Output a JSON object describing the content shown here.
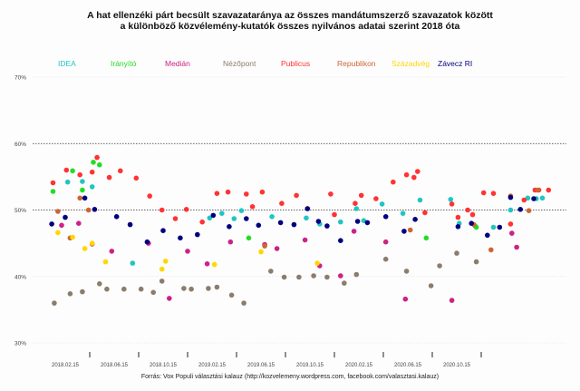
{
  "title_line1": "A hat ellenzéki párt becsült szavazataránya az összes mandátumszerző szavazatok között",
  "title_line2": "a különböző közvélemény-kutatók összes nyilvános adatai szerint 2018 óta",
  "footer": "Forrás: Vox Populi választási kalauz (http://kozvelemeny.wordpress.com, facebook.com/valasztasi.kalauz)",
  "chart_data": {
    "type": "scatter",
    "title": "A hat ellenzéki párt becsült szavazataránya az összes mandátumszerző szavazatok között a különböző közvélemény-kutatók összes nyilvános adatai szerint 2018 óta",
    "xlabel": "",
    "ylabel": "",
    "x_unit": "months since 2018.02.15",
    "xlim": [
      -1.5,
      40.5
    ],
    "ylim": [
      30,
      70
    ],
    "yticks": [
      30,
      40,
      50,
      60,
      70
    ],
    "ytick_labels": [
      "30%",
      "40%",
      "50%",
      "60%",
      "70%"
    ],
    "xticks": [
      0,
      4,
      8,
      12,
      16,
      20,
      24,
      28,
      32
    ],
    "xtick_labels": [
      "2018.02.15",
      "2018.06.15",
      "2018.10.15",
      "2019.02.15",
      "2019.06.15",
      "2019.10.15",
      "2020.02.15",
      "2020.06.15",
      "2020.10.15"
    ],
    "grid": "dotted horizontal at 50% and 60%",
    "legend_position": "top",
    "series": [
      {
        "name": "IDEA",
        "color": "#22c4c4",
        "points": [
          [
            0.2,
            54.2
          ],
          [
            1.4,
            54.3
          ],
          [
            2.2,
            53.5
          ],
          [
            5.5,
            42.0
          ],
          [
            11.8,
            48.8
          ],
          [
            12.8,
            49.5
          ],
          [
            13.8,
            48.7
          ],
          [
            14.4,
            49.9
          ],
          [
            16.9,
            49.0
          ],
          [
            19.7,
            48.8
          ],
          [
            20.8,
            47.9
          ],
          [
            22.5,
            48.2
          ],
          [
            23.8,
            50.2
          ],
          [
            24.4,
            48.4
          ],
          [
            25.9,
            50.9
          ],
          [
            27.6,
            49.5
          ],
          [
            29.0,
            51.5
          ],
          [
            31.5,
            51.6
          ],
          [
            32.2,
            48.0
          ],
          [
            33.5,
            47.6
          ],
          [
            35.0,
            47.4
          ],
          [
            36.4,
            50.0
          ],
          [
            37.8,
            51.8
          ],
          [
            38.5,
            51.7
          ],
          [
            39.0,
            51.8
          ]
        ]
      },
      {
        "name": "Irányító",
        "color": "#22dd22",
        "points": [
          [
            -1.0,
            52.8
          ],
          [
            0.6,
            55.9
          ],
          [
            1.4,
            53.0
          ],
          [
            2.3,
            57.2
          ],
          [
            2.8,
            56.8
          ],
          [
            15.0,
            45.8
          ],
          [
            29.5,
            45.8
          ],
          [
            33.6,
            47.4
          ]
        ]
      },
      {
        "name": "Medián",
        "color": "#cc2288",
        "points": [
          [
            -0.3,
            47.7
          ],
          [
            1.1,
            48.0
          ],
          [
            2.2,
            44.9
          ],
          [
            3.8,
            43.8
          ],
          [
            6.8,
            45.0
          ],
          [
            8.5,
            36.7
          ],
          [
            10.0,
            43.8
          ],
          [
            11.6,
            41.9
          ],
          [
            13.5,
            45.2
          ],
          [
            16.3,
            44.8
          ],
          [
            17.3,
            44.2
          ],
          [
            19.6,
            45.5
          ],
          [
            20.8,
            41.6
          ],
          [
            22.5,
            40.1
          ],
          [
            23.6,
            46.8
          ],
          [
            26.2,
            45.2
          ],
          [
            27.8,
            36.6
          ],
          [
            31.6,
            36.4
          ],
          [
            36.5,
            46.5
          ],
          [
            36.9,
            44.4
          ]
        ]
      },
      {
        "name": "Nézőpont",
        "color": "#8b7d6b",
        "points": [
          [
            -0.9,
            36.0
          ],
          [
            0.4,
            37.4
          ],
          [
            1.4,
            37.7
          ],
          [
            2.8,
            38.9
          ],
          [
            3.4,
            38.1
          ],
          [
            4.8,
            38.1
          ],
          [
            6.2,
            38.1
          ],
          [
            7.2,
            37.6
          ],
          [
            7.9,
            39.3
          ],
          [
            9.7,
            38.2
          ],
          [
            10.3,
            38.1
          ],
          [
            11.7,
            38.2
          ],
          [
            12.4,
            38.4
          ],
          [
            13.6,
            37.2
          ],
          [
            14.6,
            36.0
          ],
          [
            16.8,
            40.8
          ],
          [
            17.9,
            39.9
          ],
          [
            19.1,
            39.9
          ],
          [
            20.3,
            40.1
          ],
          [
            21.4,
            39.9
          ],
          [
            22.8,
            39.0
          ],
          [
            23.8,
            40.3
          ],
          [
            26.2,
            42.6
          ],
          [
            27.9,
            40.8
          ],
          [
            29.9,
            38.6
          ],
          [
            30.6,
            41.6
          ],
          [
            32.0,
            43.5
          ],
          [
            33.6,
            42.2
          ]
        ]
      },
      {
        "name": "Publicus",
        "color": "#ff3333",
        "points": [
          [
            -1.0,
            54.1
          ],
          [
            0.1,
            56.0
          ],
          [
            1.2,
            55.3
          ],
          [
            2.2,
            55.7
          ],
          [
            2.6,
            57.9
          ],
          [
            3.6,
            54.9
          ],
          [
            4.5,
            55.9
          ],
          [
            5.8,
            54.8
          ],
          [
            6.9,
            52.1
          ],
          [
            7.9,
            50.0
          ],
          [
            9.0,
            48.7
          ],
          [
            9.9,
            50.1
          ],
          [
            11.2,
            48.2
          ],
          [
            12.4,
            52.5
          ],
          [
            13.3,
            52.7
          ],
          [
            14.8,
            52.4
          ],
          [
            15.3,
            50.5
          ],
          [
            16.1,
            52.7
          ],
          [
            17.7,
            51.0
          ],
          [
            18.9,
            52.2
          ],
          [
            19.8,
            50.2
          ],
          [
            21.7,
            52.4
          ],
          [
            22.0,
            49.3
          ],
          [
            23.7,
            51.0
          ],
          [
            24.2,
            52.2
          ],
          [
            25.4,
            51.7
          ],
          [
            26.8,
            54.2
          ],
          [
            27.9,
            55.3
          ],
          [
            28.5,
            54.9
          ],
          [
            28.8,
            55.8
          ],
          [
            29.4,
            49.6
          ],
          [
            31.6,
            50.9
          ],
          [
            32.1,
            48.9
          ],
          [
            32.9,
            50.0
          ],
          [
            33.3,
            49.3
          ],
          [
            34.2,
            52.6
          ],
          [
            35.0,
            52.5
          ],
          [
            36.4,
            47.9
          ],
          [
            37.5,
            51.5
          ],
          [
            38.4,
            53.0
          ],
          [
            38.7,
            53.0
          ],
          [
            39.5,
            53.0
          ]
        ]
      },
      {
        "name": "Republikon",
        "color": "#cc6633",
        "points": [
          [
            -0.6,
            49.8
          ],
          [
            0.4,
            45.8
          ],
          [
            1.2,
            51.8
          ],
          [
            1.9,
            50.0
          ],
          [
            16.3,
            44.6
          ],
          [
            28.2,
            47.0
          ],
          [
            33.4,
            47.8
          ],
          [
            34.8,
            44.0
          ],
          [
            36.4,
            52.1
          ],
          [
            37.9,
            49.9
          ],
          [
            38.6,
            53.0
          ]
        ]
      },
      {
        "name": "Századvég",
        "color": "#ffd700",
        "points": [
          [
            -0.6,
            46.6
          ],
          [
            0.6,
            45.9
          ],
          [
            1.6,
            44.2
          ],
          [
            2.2,
            45.0
          ],
          [
            3.3,
            42.2
          ],
          [
            7.9,
            41.1
          ],
          [
            8.2,
            42.3
          ],
          [
            12.2,
            41.8
          ],
          [
            16.0,
            43.7
          ],
          [
            20.6,
            42.0
          ]
        ]
      },
      {
        "name": "Závecz RI",
        "color": "#000080",
        "points": [
          [
            -1.1,
            47.9
          ],
          [
            0.0,
            48.9
          ],
          [
            1.6,
            51.8
          ],
          [
            2.4,
            50.1
          ],
          [
            4.2,
            49.0
          ],
          [
            5.3,
            47.8
          ],
          [
            6.7,
            45.2
          ],
          [
            8.0,
            46.9
          ],
          [
            9.4,
            45.8
          ],
          [
            10.8,
            46.3
          ],
          [
            12.1,
            49.2
          ],
          [
            13.4,
            47.5
          ],
          [
            14.8,
            48.7
          ],
          [
            15.8,
            47.7
          ],
          [
            17.6,
            48.1
          ],
          [
            18.7,
            47.8
          ],
          [
            19.8,
            50.2
          ],
          [
            20.7,
            48.3
          ],
          [
            21.4,
            47.6
          ],
          [
            22.5,
            45.4
          ],
          [
            23.9,
            48.3
          ],
          [
            24.7,
            48.1
          ],
          [
            26.2,
            49.0
          ],
          [
            27.7,
            46.8
          ],
          [
            28.6,
            48.6
          ],
          [
            32.1,
            47.5
          ],
          [
            33.2,
            48.0
          ],
          [
            34.5,
            46.2
          ],
          [
            35.5,
            47.4
          ],
          [
            36.4,
            51.9
          ],
          [
            37.2,
            50.1
          ],
          [
            38.3,
            51.7
          ]
        ]
      }
    ]
  }
}
